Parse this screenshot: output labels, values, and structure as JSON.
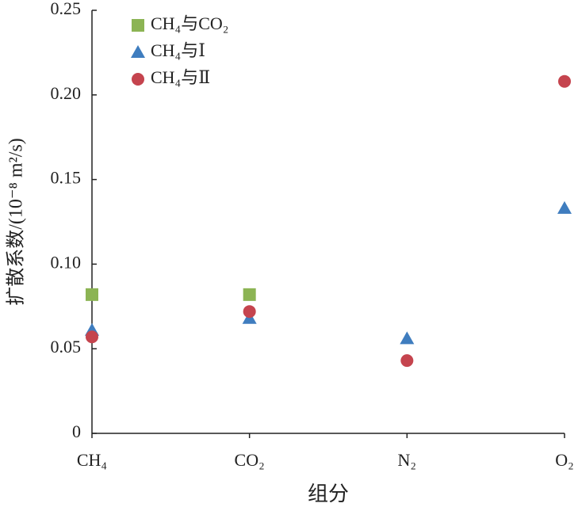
{
  "chart_data": {
    "type": "scatter",
    "xlabel": "组分",
    "ylabel": "扩散系数/(10⁻⁸ m²/s)",
    "categories": [
      "CH₄",
      "CO₂",
      "N₂",
      "O₂"
    ],
    "series": [
      {
        "name": "CH₄与CO₂",
        "color": "#8cb454",
        "marker": "square",
        "values": [
          0.082,
          0.082,
          null,
          null
        ]
      },
      {
        "name": "CH₄与Ⅰ",
        "color": "#3f7dbf",
        "marker": "triangle",
        "values": [
          0.061,
          0.068,
          0.056,
          0.133
        ]
      },
      {
        "name": "CH₄与Ⅱ",
        "color": "#c5444e",
        "marker": "circle",
        "values": [
          0.057,
          0.072,
          0.043,
          0.208
        ]
      }
    ],
    "ylim": [
      0,
      0.25
    ],
    "yticks": [
      0,
      0.05,
      {
        "value": 0.1,
        "label": "0.10"
      },
      0.15,
      {
        "value": 0.2,
        "label": "0.20"
      },
      0.25
    ],
    "grid": false,
    "legend": "upper left"
  }
}
